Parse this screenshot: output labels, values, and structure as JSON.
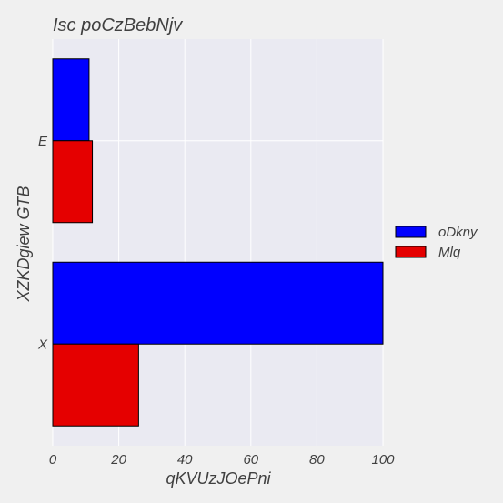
{
  "chart_data": {
    "type": "bar",
    "orientation": "horizontal",
    "title": "Isc poCzBebNjv",
    "xlabel": "qKVUzJOePni",
    "ylabel": "XZKDgiew  GTB",
    "categories": [
      "E",
      "X"
    ],
    "series": [
      {
        "name": "oDkny",
        "values": [
          11,
          100
        ],
        "color": "#0000ff"
      },
      {
        "name": "Mlq",
        "values": [
          12,
          26
        ],
        "color": "#e50000"
      }
    ],
    "xlim": [
      0,
      100
    ],
    "xticks": [
      "0",
      "20",
      "40",
      "60",
      "80",
      "100"
    ],
    "grid": true,
    "legend_position": "right"
  },
  "colors": {
    "background": "#f0f0f0",
    "plot_background": "#eaeaf2",
    "grid": "#ffffff",
    "text": "#404040"
  }
}
